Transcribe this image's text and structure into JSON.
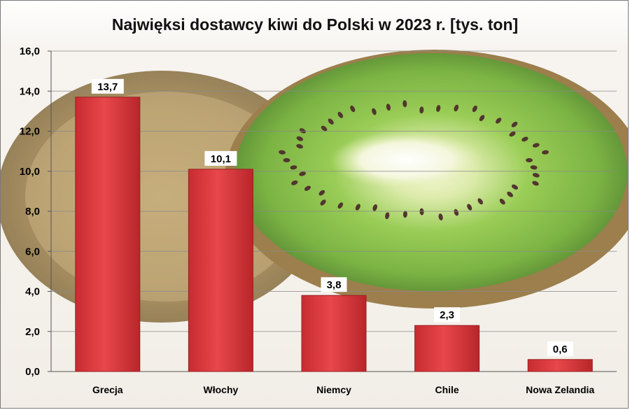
{
  "chart_data": {
    "type": "bar",
    "title": "Najwięksi dostawcy kiwi do Polski w 2023 r. [tys. ton]",
    "categories": [
      "Grecja",
      "Włochy",
      "Niemcy",
      "Chile",
      "Nowa Zelandia"
    ],
    "values": [
      13.7,
      10.1,
      3.8,
      2.3,
      0.6
    ],
    "value_labels": [
      "13,7",
      "10,1",
      "3,8",
      "2,3",
      "0,6"
    ],
    "ylim": [
      0,
      16
    ],
    "yticks": [
      "0,0",
      "2,0",
      "4,0",
      "6,0",
      "8,0",
      "10,0",
      "12,0",
      "14,0",
      "16,0"
    ],
    "xlabel": "",
    "ylabel": "",
    "grid": true,
    "bar_color": "#d9363a",
    "background": "kiwi-fruit-photo"
  }
}
